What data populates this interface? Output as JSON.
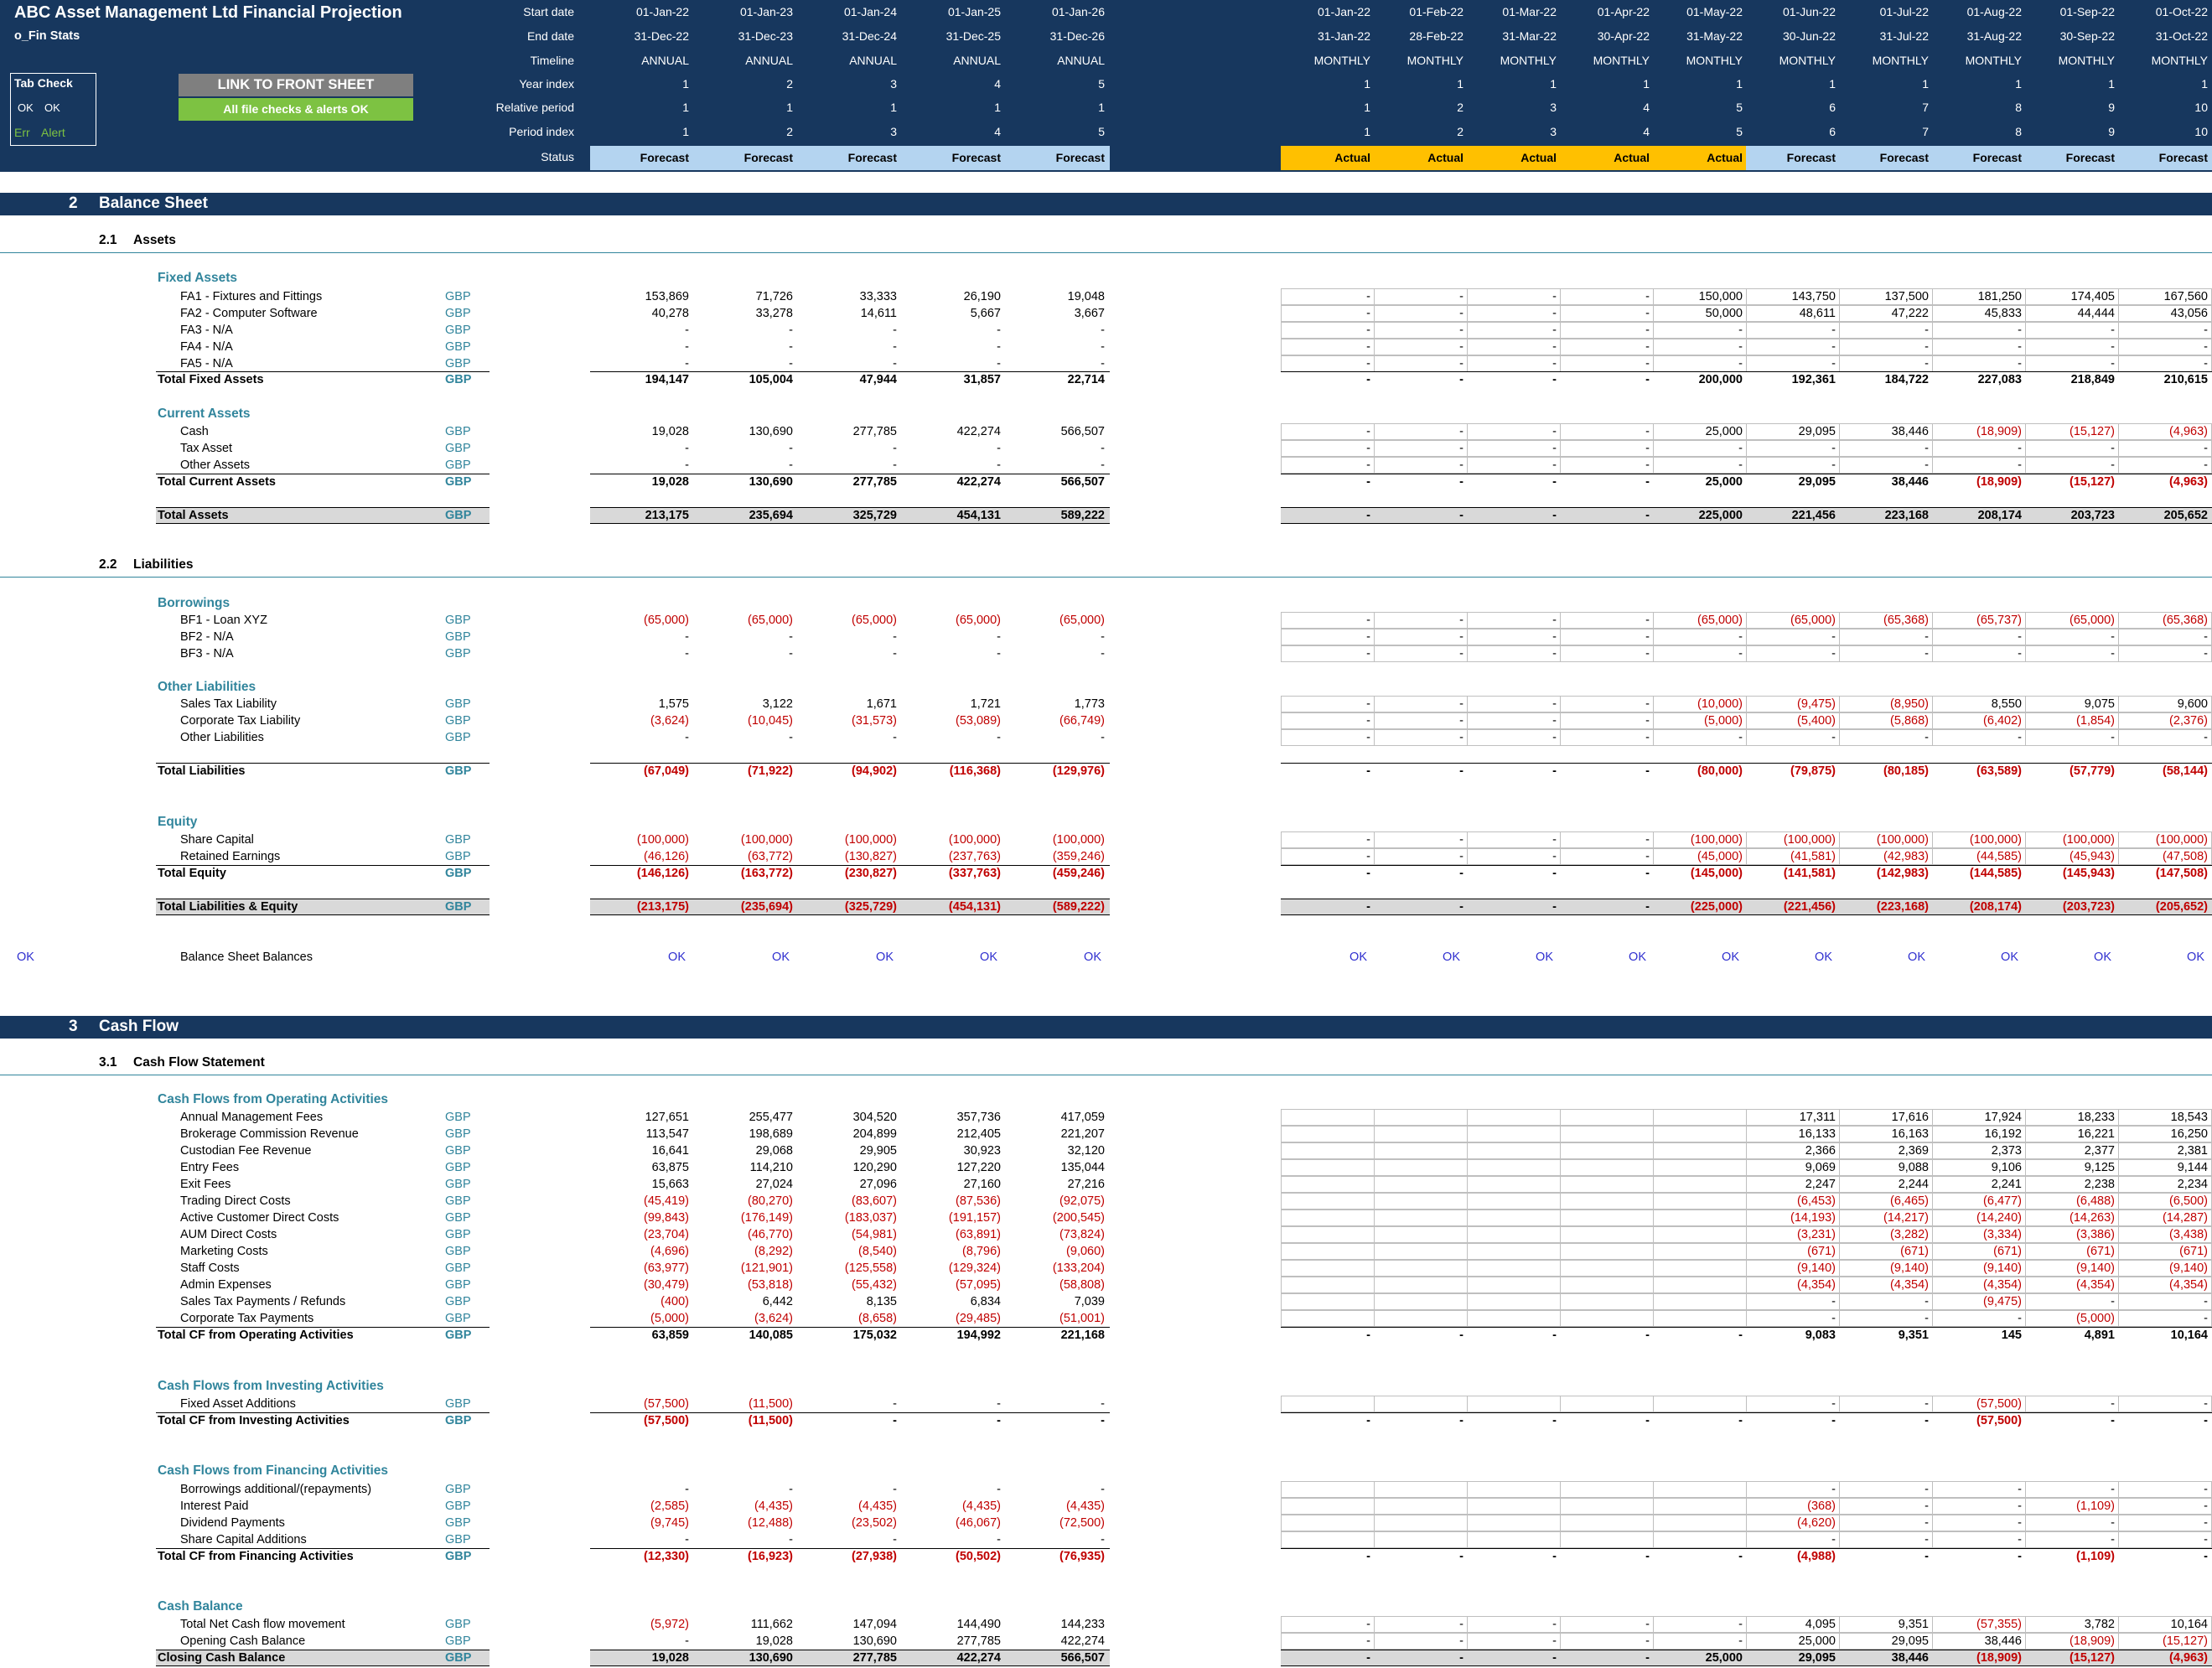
{
  "header": {
    "title": "ABC Asset Management Ltd Financial Projection",
    "sheet": "o_Fin Stats",
    "tab_check": {
      "title": "Tab Check",
      "ok1": "OK",
      "ok2": "OK",
      "err": "Err",
      "alert": "Alert"
    },
    "link_button": "LINK TO FRONT SHEET",
    "checks_button": "All file checks & alerts OK",
    "row_labels": [
      "Start date",
      "End date",
      "Timeline",
      "Year index",
      "Relative period",
      "Period index",
      "Status"
    ],
    "annual": {
      "start": [
        "01-Jan-22",
        "01-Jan-23",
        "01-Jan-24",
        "01-Jan-25",
        "01-Jan-26"
      ],
      "end": [
        "31-Dec-22",
        "31-Dec-23",
        "31-Dec-24",
        "31-Dec-25",
        "31-Dec-26"
      ],
      "timeline": [
        "ANNUAL",
        "ANNUAL",
        "ANNUAL",
        "ANNUAL",
        "ANNUAL"
      ],
      "year_index": [
        "1",
        "2",
        "3",
        "4",
        "5"
      ],
      "relative": [
        "1",
        "1",
        "1",
        "1",
        "1"
      ],
      "period_index": [
        "1",
        "2",
        "3",
        "4",
        "5"
      ],
      "status": [
        "Forecast",
        "Forecast",
        "Forecast",
        "Forecast",
        "Forecast"
      ]
    },
    "monthly": {
      "start": [
        "01-Jan-22",
        "01-Feb-22",
        "01-Mar-22",
        "01-Apr-22",
        "01-May-22",
        "01-Jun-22",
        "01-Jul-22",
        "01-Aug-22",
        "01-Sep-22",
        "01-Oct-22"
      ],
      "end": [
        "31-Jan-22",
        "28-Feb-22",
        "31-Mar-22",
        "30-Apr-22",
        "31-May-22",
        "30-Jun-22",
        "31-Jul-22",
        "31-Aug-22",
        "30-Sep-22",
        "31-Oct-22"
      ],
      "timeline": [
        "MONTHLY",
        "MONTHLY",
        "MONTHLY",
        "MONTHLY",
        "MONTHLY",
        "MONTHLY",
        "MONTHLY",
        "MONTHLY",
        "MONTHLY",
        "MONTHLY"
      ],
      "year_index": [
        "1",
        "1",
        "1",
        "1",
        "1",
        "1",
        "1",
        "1",
        "1",
        "1"
      ],
      "relative": [
        "1",
        "2",
        "3",
        "4",
        "5",
        "6",
        "7",
        "8",
        "9",
        "10"
      ],
      "period_index": [
        "1",
        "2",
        "3",
        "4",
        "5",
        "6",
        "7",
        "8",
        "9",
        "10"
      ],
      "status": [
        "Actual",
        "Actual",
        "Actual",
        "Actual",
        "Actual",
        "Forecast",
        "Forecast",
        "Forecast",
        "Forecast",
        "Forecast"
      ]
    },
    "colors": {
      "navy": "#17375e",
      "forecast": "#b4d4f0",
      "actual": "#ffc000",
      "accent": "#31859c",
      "negative": "#c00000"
    }
  },
  "sections": [
    {
      "num": "2",
      "title": "Balance Sheet"
    },
    {
      "num": "3",
      "title": "Cash Flow"
    }
  ],
  "subsections": [
    {
      "num": "2.1",
      "title": "Assets"
    },
    {
      "num": "2.2",
      "title": "Liabilities"
    },
    {
      "num": "3.1",
      "title": "Cash Flow Statement"
    }
  ],
  "groups": [
    "Fixed Assets",
    "Current Assets",
    "Borrowings",
    "Other Liabilities",
    "Equity",
    "Cash Flows from Operating Activities",
    "Cash Flows from Investing Activities",
    "Cash Flows from Financing Activities",
    "Cash Balance"
  ],
  "rows": [
    {
      "label": "FA1 - Fixtures and Fittings",
      "unit": "GBP",
      "a": [
        "153,869",
        "71,726",
        "33,333",
        "26,190",
        "19,048"
      ],
      "m": [
        "-",
        "-",
        "-",
        "-",
        "150,000",
        "143,750",
        "137,500",
        "181,250",
        "174,405",
        "167,560"
      ]
    },
    {
      "label": "FA2 - Computer Software",
      "unit": "GBP",
      "a": [
        "40,278",
        "33,278",
        "14,611",
        "5,667",
        "3,667"
      ],
      "m": [
        "-",
        "-",
        "-",
        "-",
        "50,000",
        "48,611",
        "47,222",
        "45,833",
        "44,444",
        "43,056"
      ]
    },
    {
      "label": "FA3 - N/A",
      "unit": "GBP",
      "a": [
        "-",
        "-",
        "-",
        "-",
        "-"
      ],
      "m": [
        "-",
        "-",
        "-",
        "-",
        "-",
        "-",
        "-",
        "-",
        "-",
        "-"
      ]
    },
    {
      "label": "FA4 - N/A",
      "unit": "GBP",
      "a": [
        "-",
        "-",
        "-",
        "-",
        "-"
      ],
      "m": [
        "-",
        "-",
        "-",
        "-",
        "-",
        "-",
        "-",
        "-",
        "-",
        "-"
      ]
    },
    {
      "label": "FA5 - N/A",
      "unit": "GBP",
      "a": [
        "-",
        "-",
        "-",
        "-",
        "-"
      ],
      "m": [
        "-",
        "-",
        "-",
        "-",
        "-",
        "-",
        "-",
        "-",
        "-",
        "-"
      ]
    },
    {
      "label": "Total Fixed Assets",
      "unit": "GBP",
      "a": [
        "194,147",
        "105,004",
        "47,944",
        "31,857",
        "22,714"
      ],
      "m": [
        "-",
        "-",
        "-",
        "-",
        "200,000",
        "192,361",
        "184,722",
        "227,083",
        "218,849",
        "210,615"
      ]
    },
    {
      "label": "Cash",
      "unit": "GBP",
      "a": [
        "19,028",
        "130,690",
        "277,785",
        "422,274",
        "566,507"
      ],
      "m": [
        "-",
        "-",
        "-",
        "-",
        "25,000",
        "29,095",
        "38,446",
        "(18,909)",
        "(15,127)",
        "(4,963)"
      ]
    },
    {
      "label": "Tax Asset",
      "unit": "GBP",
      "a": [
        "-",
        "-",
        "-",
        "-",
        "-"
      ],
      "m": [
        "-",
        "-",
        "-",
        "-",
        "-",
        "-",
        "-",
        "-",
        "-",
        "-"
      ]
    },
    {
      "label": "Other Assets",
      "unit": "GBP",
      "a": [
        "-",
        "-",
        "-",
        "-",
        "-"
      ],
      "m": [
        "-",
        "-",
        "-",
        "-",
        "-",
        "-",
        "-",
        "-",
        "-",
        "-"
      ]
    },
    {
      "label": "Total Current Assets",
      "unit": "GBP",
      "a": [
        "19,028",
        "130,690",
        "277,785",
        "422,274",
        "566,507"
      ],
      "m": [
        "-",
        "-",
        "-",
        "-",
        "25,000",
        "29,095",
        "38,446",
        "(18,909)",
        "(15,127)",
        "(4,963)"
      ]
    },
    {
      "label": "Total Assets",
      "unit": "GBP",
      "a": [
        "213,175",
        "235,694",
        "325,729",
        "454,131",
        "589,222"
      ],
      "m": [
        "-",
        "-",
        "-",
        "-",
        "225,000",
        "221,456",
        "223,168",
        "208,174",
        "203,723",
        "205,652"
      ]
    },
    {
      "label": "BF1 - Loan XYZ",
      "unit": "GBP",
      "a": [
        "(65,000)",
        "(65,000)",
        "(65,000)",
        "(65,000)",
        "(65,000)"
      ],
      "m": [
        "-",
        "-",
        "-",
        "-",
        "(65,000)",
        "(65,000)",
        "(65,368)",
        "(65,737)",
        "(65,000)",
        "(65,368)"
      ]
    },
    {
      "label": "BF2 - N/A",
      "unit": "GBP",
      "a": [
        "-",
        "-",
        "-",
        "-",
        "-"
      ],
      "m": [
        "-",
        "-",
        "-",
        "-",
        "-",
        "-",
        "-",
        "-",
        "-",
        "-"
      ]
    },
    {
      "label": "BF3 - N/A",
      "unit": "GBP",
      "a": [
        "-",
        "-",
        "-",
        "-",
        "-"
      ],
      "m": [
        "-",
        "-",
        "-",
        "-",
        "-",
        "-",
        "-",
        "-",
        "-",
        "-"
      ]
    },
    {
      "label": "Sales Tax Liability",
      "unit": "GBP",
      "a": [
        "1,575",
        "3,122",
        "1,671",
        "1,721",
        "1,773"
      ],
      "m": [
        "-",
        "-",
        "-",
        "-",
        "(10,000)",
        "(9,475)",
        "(8,950)",
        "8,550",
        "9,075",
        "9,600"
      ]
    },
    {
      "label": "Corporate Tax Liability",
      "unit": "GBP",
      "a": [
        "(3,624)",
        "(10,045)",
        "(31,573)",
        "(53,089)",
        "(66,749)"
      ],
      "m": [
        "-",
        "-",
        "-",
        "-",
        "(5,000)",
        "(5,400)",
        "(5,868)",
        "(6,402)",
        "(1,854)",
        "(2,376)"
      ]
    },
    {
      "label": "Other Liabilities",
      "unit": "GBP",
      "a": [
        "-",
        "-",
        "-",
        "-",
        "-"
      ],
      "m": [
        "-",
        "-",
        "-",
        "-",
        "-",
        "-",
        "-",
        "-",
        "-",
        "-"
      ]
    },
    {
      "label": "Total Liabilities",
      "unit": "GBP",
      "a": [
        "(67,049)",
        "(71,922)",
        "(94,902)",
        "(116,368)",
        "(129,976)"
      ],
      "m": [
        "-",
        "-",
        "-",
        "-",
        "(80,000)",
        "(79,875)",
        "(80,185)",
        "(63,589)",
        "(57,779)",
        "(58,144)"
      ]
    },
    {
      "label": "Share Capital",
      "unit": "GBP",
      "a": [
        "(100,000)",
        "(100,000)",
        "(100,000)",
        "(100,000)",
        "(100,000)"
      ],
      "m": [
        "-",
        "-",
        "-",
        "-",
        "(100,000)",
        "(100,000)",
        "(100,000)",
        "(100,000)",
        "(100,000)",
        "(100,000)"
      ]
    },
    {
      "label": "Retained Earnings",
      "unit": "GBP",
      "a": [
        "(46,126)",
        "(63,772)",
        "(130,827)",
        "(237,763)",
        "(359,246)"
      ],
      "m": [
        "-",
        "-",
        "-",
        "-",
        "(45,000)",
        "(41,581)",
        "(42,983)",
        "(44,585)",
        "(45,943)",
        "(47,508)"
      ]
    },
    {
      "label": "Total Equity",
      "unit": "GBP",
      "a": [
        "(146,126)",
        "(163,772)",
        "(230,827)",
        "(337,763)",
        "(459,246)"
      ],
      "m": [
        "-",
        "-",
        "-",
        "-",
        "(145,000)",
        "(141,581)",
        "(142,983)",
        "(144,585)",
        "(145,943)",
        "(147,508)"
      ]
    },
    {
      "label": "Total Liabilities & Equity",
      "unit": "GBP",
      "a": [
        "(213,175)",
        "(235,694)",
        "(325,729)",
        "(454,131)",
        "(589,222)"
      ],
      "m": [
        "-",
        "-",
        "-",
        "-",
        "(225,000)",
        "(221,456)",
        "(223,168)",
        "(208,174)",
        "(203,723)",
        "(205,652)"
      ]
    },
    {
      "label": "Balance Sheet Balances",
      "unit": "",
      "check": "OK",
      "a": [
        "OK",
        "OK",
        "OK",
        "OK",
        "OK"
      ],
      "m": [
        "OK",
        "OK",
        "OK",
        "OK",
        "OK",
        "OK",
        "OK",
        "OK",
        "OK",
        "OK"
      ]
    },
    {
      "label": "Annual Management Fees",
      "unit": "GBP",
      "a": [
        "127,651",
        "255,477",
        "304,520",
        "357,736",
        "417,059"
      ],
      "m": [
        "",
        "",
        "",
        "",
        "",
        "17,311",
        "17,616",
        "17,924",
        "18,233",
        "18,543"
      ]
    },
    {
      "label": "Brokerage Commission Revenue",
      "unit": "GBP",
      "a": [
        "113,547",
        "198,689",
        "204,899",
        "212,405",
        "221,207"
      ],
      "m": [
        "",
        "",
        "",
        "",
        "",
        "16,133",
        "16,163",
        "16,192",
        "16,221",
        "16,250"
      ]
    },
    {
      "label": "Custodian Fee Revenue",
      "unit": "GBP",
      "a": [
        "16,641",
        "29,068",
        "29,905",
        "30,923",
        "32,120"
      ],
      "m": [
        "",
        "",
        "",
        "",
        "",
        "2,366",
        "2,369",
        "2,373",
        "2,377",
        "2,381"
      ]
    },
    {
      "label": "Entry Fees",
      "unit": "GBP",
      "a": [
        "63,875",
        "114,210",
        "120,290",
        "127,220",
        "135,044"
      ],
      "m": [
        "",
        "",
        "",
        "",
        "",
        "9,069",
        "9,088",
        "9,106",
        "9,125",
        "9,144"
      ]
    },
    {
      "label": "Exit Fees",
      "unit": "GBP",
      "a": [
        "15,663",
        "27,024",
        "27,096",
        "27,160",
        "27,216"
      ],
      "m": [
        "",
        "",
        "",
        "",
        "",
        "2,247",
        "2,244",
        "2,241",
        "2,238",
        "2,234"
      ]
    },
    {
      "label": "Trading Direct Costs",
      "unit": "GBP",
      "a": [
        "(45,419)",
        "(80,270)",
        "(83,607)",
        "(87,536)",
        "(92,075)"
      ],
      "m": [
        "",
        "",
        "",
        "",
        "",
        "(6,453)",
        "(6,465)",
        "(6,477)",
        "(6,488)",
        "(6,500)"
      ]
    },
    {
      "label": "Active Customer Direct Costs",
      "unit": "GBP",
      "a": [
        "(99,843)",
        "(176,149)",
        "(183,037)",
        "(191,157)",
        "(200,545)"
      ],
      "m": [
        "",
        "",
        "",
        "",
        "",
        "(14,193)",
        "(14,217)",
        "(14,240)",
        "(14,263)",
        "(14,287)"
      ]
    },
    {
      "label": "AUM Direct Costs",
      "unit": "GBP",
      "a": [
        "(23,704)",
        "(46,770)",
        "(54,981)",
        "(63,891)",
        "(73,824)"
      ],
      "m": [
        "",
        "",
        "",
        "",
        "",
        "(3,231)",
        "(3,282)",
        "(3,334)",
        "(3,386)",
        "(3,438)"
      ]
    },
    {
      "label": "Marketing Costs",
      "unit": "GBP",
      "a": [
        "(4,696)",
        "(8,292)",
        "(8,540)",
        "(8,796)",
        "(9,060)"
      ],
      "m": [
        "",
        "",
        "",
        "",
        "",
        "(671)",
        "(671)",
        "(671)",
        "(671)",
        "(671)"
      ]
    },
    {
      "label": "Staff Costs",
      "unit": "GBP",
      "a": [
        "(63,977)",
        "(121,901)",
        "(125,558)",
        "(129,324)",
        "(133,204)"
      ],
      "m": [
        "",
        "",
        "",
        "",
        "",
        "(9,140)",
        "(9,140)",
        "(9,140)",
        "(9,140)",
        "(9,140)"
      ]
    },
    {
      "label": "Admin Expenses",
      "unit": "GBP",
      "a": [
        "(30,479)",
        "(53,818)",
        "(55,432)",
        "(57,095)",
        "(58,808)"
      ],
      "m": [
        "",
        "",
        "",
        "",
        "",
        "(4,354)",
        "(4,354)",
        "(4,354)",
        "(4,354)",
        "(4,354)"
      ]
    },
    {
      "label": "Sales Tax Payments / Refunds",
      "unit": "GBP",
      "a": [
        "(400)",
        "6,442",
        "8,135",
        "6,834",
        "7,039"
      ],
      "m": [
        "",
        "",
        "",
        "",
        "",
        "-",
        "-",
        "(9,475)",
        "-",
        "-"
      ]
    },
    {
      "label": "Corporate Tax Payments",
      "unit": "GBP",
      "a": [
        "(5,000)",
        "(3,624)",
        "(8,658)",
        "(29,485)",
        "(51,001)"
      ],
      "m": [
        "",
        "",
        "",
        "",
        "",
        "-",
        "-",
        "-",
        "(5,000)",
        "-"
      ]
    },
    {
      "label": "Total CF from Operating Activities",
      "unit": "GBP",
      "a": [
        "63,859",
        "140,085",
        "175,032",
        "194,992",
        "221,168"
      ],
      "m": [
        "-",
        "-",
        "-",
        "-",
        "-",
        "9,083",
        "9,351",
        "145",
        "4,891",
        "10,164"
      ]
    },
    {
      "label": "Fixed Asset Additions",
      "unit": "GBP",
      "a": [
        "(57,500)",
        "(11,500)",
        "-",
        "-",
        "-"
      ],
      "m": [
        "",
        "",
        "",
        "",
        "",
        "-",
        "-",
        "(57,500)",
        "-",
        "-"
      ]
    },
    {
      "label": "Total CF from Investing Activities",
      "unit": "GBP",
      "a": [
        "(57,500)",
        "(11,500)",
        "-",
        "-",
        "-"
      ],
      "m": [
        "-",
        "-",
        "-",
        "-",
        "-",
        "-",
        "-",
        "(57,500)",
        "-",
        "-"
      ]
    },
    {
      "label": "Borrowings additional/(repayments)",
      "unit": "GBP",
      "a": [
        "-",
        "-",
        "-",
        "-",
        "-"
      ],
      "m": [
        "",
        "",
        "",
        "",
        "",
        "-",
        "-",
        "-",
        "-",
        "-"
      ]
    },
    {
      "label": "Interest Paid",
      "unit": "GBP",
      "a": [
        "(2,585)",
        "(4,435)",
        "(4,435)",
        "(4,435)",
        "(4,435)"
      ],
      "m": [
        "",
        "",
        "",
        "",
        "",
        "(368)",
        "-",
        "-",
        "(1,109)",
        "-"
      ]
    },
    {
      "label": "Dividend Payments",
      "unit": "GBP",
      "a": [
        "(9,745)",
        "(12,488)",
        "(23,502)",
        "(46,067)",
        "(72,500)"
      ],
      "m": [
        "",
        "",
        "",
        "",
        "",
        "(4,620)",
        "-",
        "-",
        "-",
        "-"
      ]
    },
    {
      "label": "Share Capital Additions",
      "unit": "GBP",
      "a": [
        "-",
        "-",
        "-",
        "-",
        "-"
      ],
      "m": [
        "",
        "",
        "",
        "",
        "",
        "-",
        "-",
        "-",
        "-",
        "-"
      ]
    },
    {
      "label": "Total CF from Financing Activities",
      "unit": "GBP",
      "a": [
        "(12,330)",
        "(16,923)",
        "(27,938)",
        "(50,502)",
        "(76,935)"
      ],
      "m": [
        "-",
        "-",
        "-",
        "-",
        "-",
        "(4,988)",
        "-",
        "-",
        "(1,109)",
        "-"
      ]
    },
    {
      "label": "Total Net Cash flow movement",
      "unit": "GBP",
      "a": [
        "(5,972)",
        "111,662",
        "147,094",
        "144,490",
        "144,233"
      ],
      "m": [
        "-",
        "-",
        "-",
        "-",
        "-",
        "4,095",
        "9,351",
        "(57,355)",
        "3,782",
        "10,164"
      ]
    },
    {
      "label": "Opening Cash Balance",
      "unit": "GBP",
      "a": [
        "-",
        "19,028",
        "130,690",
        "277,785",
        "422,274"
      ],
      "m": [
        "-",
        "-",
        "-",
        "-",
        "-",
        "25,000",
        "29,095",
        "38,446",
        "(18,909)",
        "(15,127)"
      ]
    },
    {
      "label": "Closing Cash Balance",
      "unit": "GBP",
      "a": [
        "19,028",
        "130,690",
        "277,785",
        "422,274",
        "566,507"
      ],
      "m": [
        "-",
        "-",
        "-",
        "-",
        "25,000",
        "29,095",
        "38,446",
        "(18,909)",
        "(15,127)",
        "(4,963)"
      ]
    }
  ]
}
